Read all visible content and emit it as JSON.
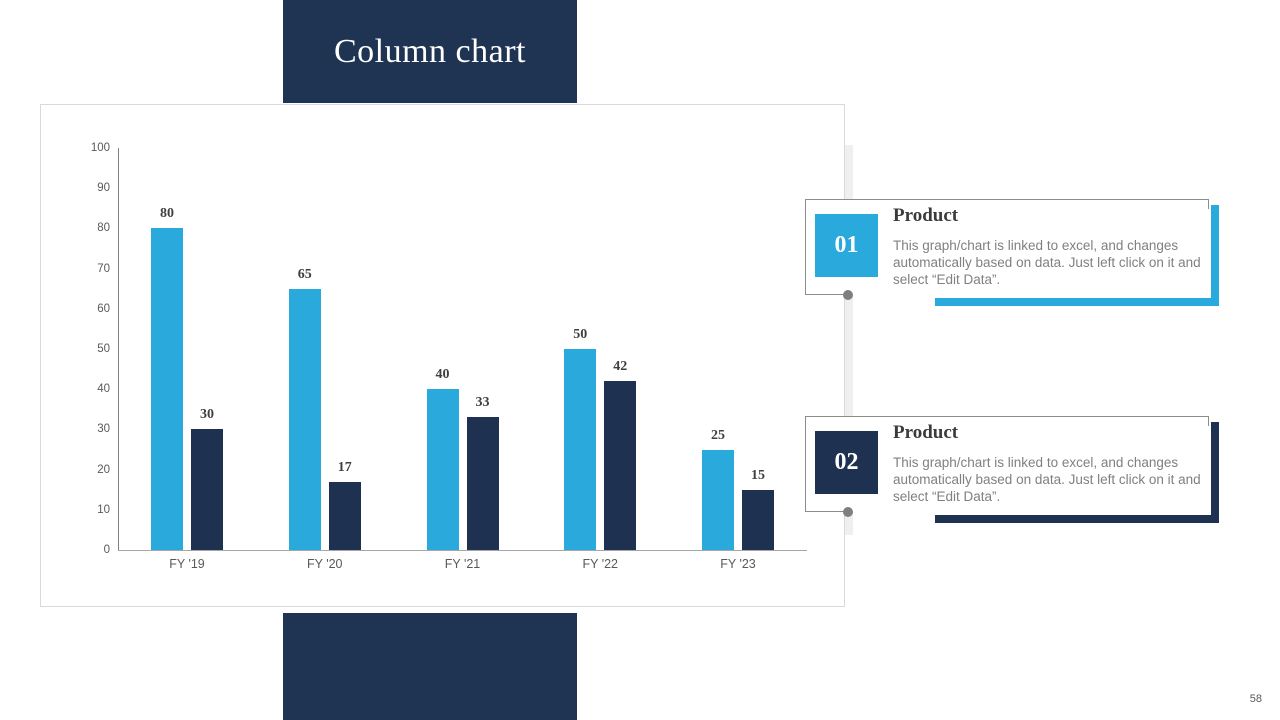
{
  "slide": {
    "title": "Column chart",
    "page_number": "58"
  },
  "chart_data": {
    "type": "bar",
    "categories": [
      "FY '19",
      "FY '20",
      "FY '21",
      "FY '22",
      "FY '23"
    ],
    "series": [
      {
        "color": "#29a9dc",
        "values": [
          80,
          65,
          40,
          50,
          25
        ]
      },
      {
        "color": "#1f3150",
        "values": [
          30,
          17,
          33,
          42,
          15
        ]
      }
    ],
    "ylim": [
      0,
      100
    ],
    "ytick_step": 10,
    "grid": false,
    "legend": "none",
    "data_labels": true,
    "xlabel": "",
    "ylabel": "",
    "title": ""
  },
  "callouts": [
    {
      "number": "01",
      "title": "Product",
      "body": "This graph/chart is linked to excel, and changes automatically based on data. Just left click on it and select “Edit Data”.",
      "accent": "#29a9dc"
    },
    {
      "number": "02",
      "title": "Product",
      "body": "This graph/chart is linked to excel, and changes automatically based on data. Just left click on it and select “Edit Data”.",
      "accent": "#1f3150"
    }
  ],
  "colors": {
    "navy": "#1f3352",
    "cyan": "#29a9dc",
    "bar_navy": "#1f3150",
    "axis_text": "#595959",
    "body_text": "#808080",
    "value_label": "#3f3f3f"
  }
}
